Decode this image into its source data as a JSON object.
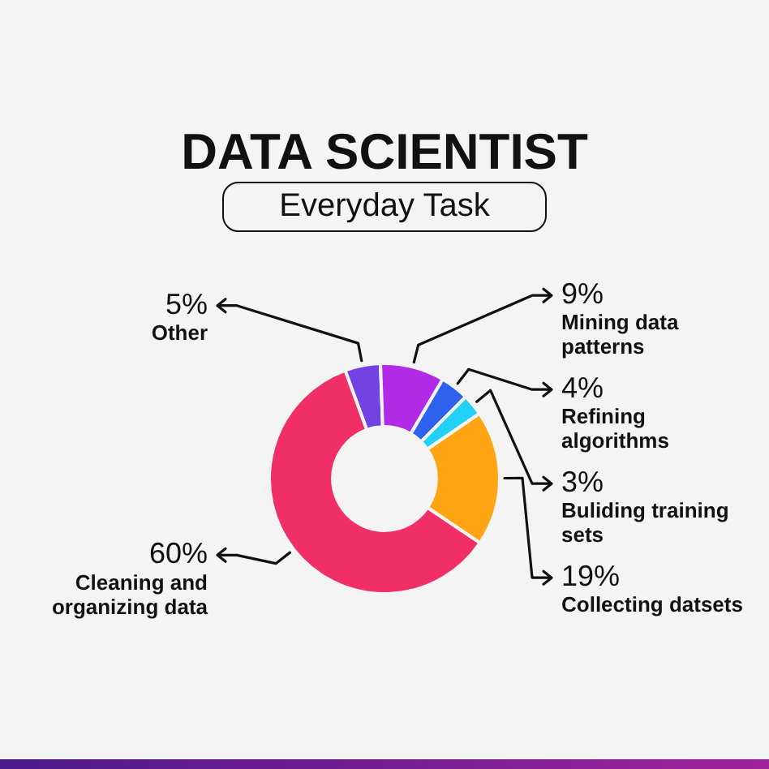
{
  "chart_data": {
    "type": "donut",
    "title": "DATA SCIENTIST",
    "subtitle": "Everyday Task",
    "categories": [
      "Other",
      "Mining data patterns",
      "Refining algorithms",
      "Buliding training sets",
      "Collecting datsets",
      "Cleaning and organizing data"
    ],
    "values": [
      5,
      9,
      4,
      3,
      19,
      60
    ],
    "value_labels": [
      "5%",
      "9%",
      "4%",
      "3%",
      "19%",
      "60%"
    ],
    "colors": [
      "#7242e2",
      "#b22ae6",
      "#2e62ee",
      "#22d2f6",
      "#ffa412",
      "#f02f68"
    ]
  }
}
